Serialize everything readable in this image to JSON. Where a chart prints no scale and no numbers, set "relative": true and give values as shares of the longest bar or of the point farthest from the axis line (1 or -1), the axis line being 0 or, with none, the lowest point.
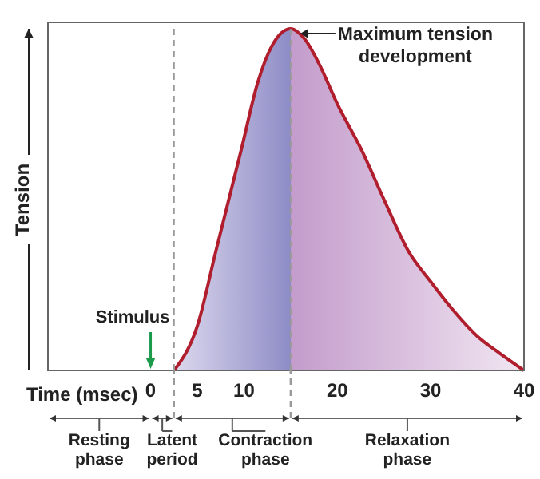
{
  "chart_data": {
    "type": "area",
    "xlabel": "Time (msec)",
    "ylabel": "Tension",
    "relative": true,
    "x": [
      2.5,
      5,
      7,
      9.7,
      11.5,
      13,
      15,
      16.5,
      18,
      20,
      22.6,
      25,
      27.7,
      30,
      32.3,
      35,
      37.4,
      40
    ],
    "series": [
      {
        "color": "#b01e2e",
        "values": [
          0,
          0.13,
          0.35,
          0.645,
          0.845,
          0.95,
          1,
          0.97,
          0.9,
          0.78,
          0.645,
          0.5,
          0.345,
          0.26,
          0.18,
          0.1,
          0.05,
          0
        ]
      }
    ],
    "xlim": [
      -11,
      40
    ],
    "xticks": [
      0,
      5,
      10,
      20,
      30,
      40
    ],
    "grid": false,
    "legend": false,
    "marker": "none",
    "line_style": "solid",
    "ref_lines": [
      {
        "axis": "x",
        "value": 2.5,
        "color": "#999999",
        "line_style": "dashed"
      },
      {
        "axis": "x",
        "value": 15,
        "color": "#999999",
        "line_style": "dashed"
      }
    ],
    "annotations": [
      {
        "text": "Maximum tension development",
        "x": 15,
        "y": 1
      },
      "Stimulus",
      "Resting phase",
      "Latent period",
      "Contraction phase",
      "Relaxation phase"
    ]
  }
}
